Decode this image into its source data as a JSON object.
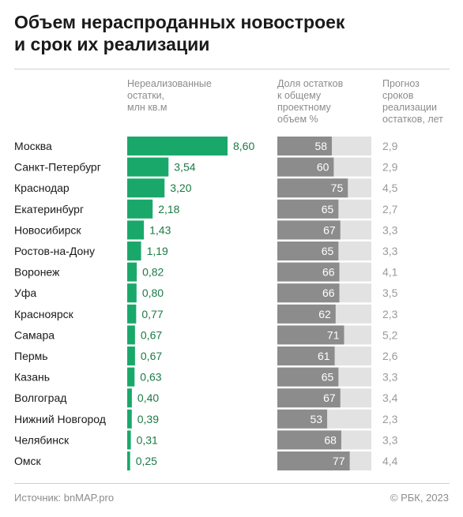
{
  "title_lines": [
    "Объем нераспроданных новостроек",
    "и срок их реализации"
  ],
  "columns": {
    "unsold": [
      "Нереализованные",
      "остатки,",
      "млн кв.м"
    ],
    "share": [
      "Доля остатков",
      "к общему",
      "проектному",
      "объем %"
    ],
    "forecast": [
      "Прогноз",
      "сроков",
      "реализации",
      "остатков, лет"
    ]
  },
  "colors": {
    "green_bar": "#1aa86a",
    "green_text": "#1b7a45",
    "share_fill": "#8c8c8c",
    "share_track": "#e2e2e2",
    "forecast_text": "#9a9a9a"
  },
  "chart_data": {
    "type": "bar",
    "categories": [
      "Москва",
      "Санкт-Петербург",
      "Краснодар",
      "Екатеринбург",
      "Новосибирск",
      "Ростов-на-Дону",
      "Воронеж",
      "Уфа",
      "Красноярск",
      "Самара",
      "Пермь",
      "Казань",
      "Волгоград",
      "Нижний Новгород",
      "Челябинск",
      "Омск"
    ],
    "unsold_values": [
      8.6,
      3.54,
      3.2,
      2.18,
      1.43,
      1.19,
      0.82,
      0.8,
      0.77,
      0.67,
      0.67,
      0.63,
      0.4,
      0.39,
      0.31,
      0.25
    ],
    "unsold_labels": [
      "8,60",
      "3,54",
      "3,20",
      "2,18",
      "1,43",
      "1,19",
      "0,82",
      "0,80",
      "0,77",
      "0,67",
      "0,67",
      "0,63",
      "0,40",
      "0,39",
      "0,31",
      "0,25"
    ],
    "share_values": [
      58,
      60,
      75,
      65,
      67,
      65,
      66,
      66,
      62,
      71,
      61,
      65,
      67,
      53,
      68,
      77
    ],
    "share_max": 100,
    "forecast_values": [
      "2,9",
      "2,9",
      "4,5",
      "2,7",
      "3,3",
      "3,3",
      "4,1",
      "3,5",
      "2,3",
      "5,2",
      "2,6",
      "3,3",
      "3,4",
      "2,3",
      "3,3",
      "4,4"
    ]
  },
  "footer": {
    "source": "Источник: bnMAP.pro",
    "copyright": "© РБК, 2023"
  }
}
